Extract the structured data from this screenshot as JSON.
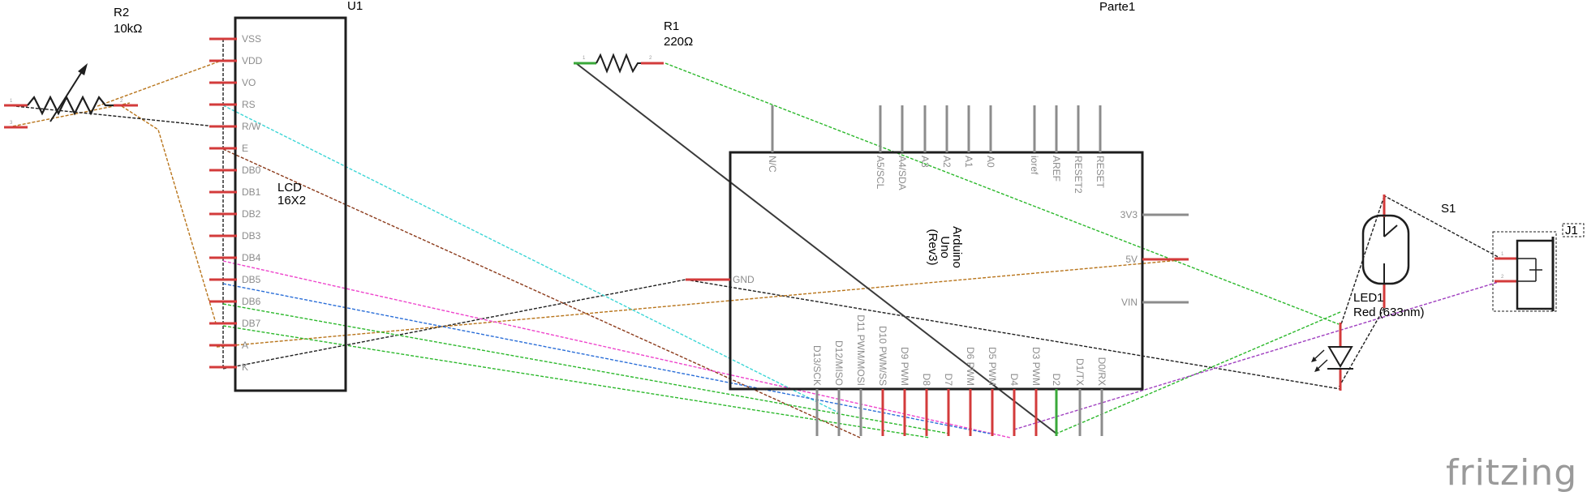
{
  "lcd": {
    "ref": "U1",
    "name_line1": "LCD",
    "name_line2": "16X2",
    "pins": [
      "VSS",
      "VDD",
      "VO",
      "RS",
      "R/W",
      "E",
      "DB0",
      "DB1",
      "DB2",
      "DB3",
      "DB4",
      "DB5",
      "DB6",
      "DB7",
      "A",
      "K"
    ]
  },
  "r2": {
    "ref": "R2",
    "value": "10kΩ",
    "pin1": "1",
    "pin2": "2",
    "pin3": "3"
  },
  "r1": {
    "ref": "R1",
    "value": "220Ω",
    "pin1": "1",
    "pin2": "2"
  },
  "arduino": {
    "ref": "Parte1",
    "name_line1": "Arduino",
    "name_line2": "Uno",
    "name_line3": "(Rev3)",
    "top_pins": [
      "N/C",
      "A5/SCL",
      "A4/SDA",
      "A3",
      "A2",
      "A1",
      "A0",
      "ioref",
      "AREF",
      "RESET2",
      "RESET"
    ],
    "right_pins": [
      "3V3",
      "5V",
      "VIN"
    ],
    "left_pin": "GND",
    "bottom_pins": [
      "D13/SCK",
      "D12/MISO",
      "D11 PWM/MOSI",
      "D10 PWM/SS",
      "D9 PWM",
      "D8",
      "D7",
      "D6 PWM",
      "D5 PWM",
      "D4",
      "D3 PWM",
      "D2",
      "D1/TX",
      "D0/RX"
    ]
  },
  "s1": {
    "ref": "S1"
  },
  "led": {
    "ref": "LED1",
    "value": "Red (633nm)"
  },
  "j1": {
    "ref": "J1",
    "pin1": "1",
    "pin2": "2"
  },
  "brand": "fritzing",
  "colors": {
    "orange_wire": "#b8741a",
    "cyan_wire": "#3cd6d6",
    "brown_wire": "#8b3a1a",
    "magenta_wire": "#ee44cc",
    "blue_wire": "#2a6ed8",
    "green_wire": "#2bb82b",
    "black_wire": "#1e1e1e",
    "purple_wire": "#a040c0",
    "pin_red": "#d33b3b",
    "pin_grey": "#8c8c8c",
    "pin_green": "#3aa83a"
  }
}
